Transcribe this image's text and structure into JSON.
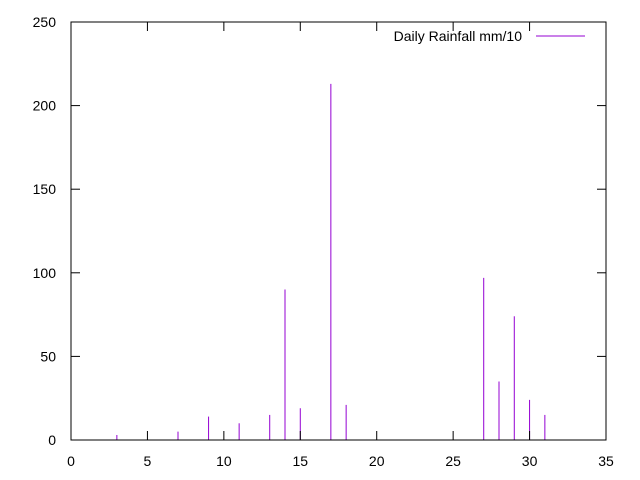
{
  "chart_data": {
    "type": "bar",
    "style": "impulses",
    "legend_position": "top-right",
    "grid": false,
    "xlim": [
      0,
      35
    ],
    "ylim": [
      0,
      250
    ],
    "x_ticks": [
      0,
      5,
      10,
      15,
      20,
      25,
      30,
      35
    ],
    "y_ticks": [
      0,
      50,
      100,
      150,
      200,
      250
    ],
    "series": [
      {
        "name": "Daily Rainfall mm/10",
        "color": "#9400d3",
        "x": [
          1,
          2,
          3,
          4,
          5,
          6,
          7,
          8,
          9,
          10,
          11,
          12,
          13,
          14,
          15,
          16,
          17,
          18,
          19,
          20,
          21,
          22,
          23,
          24,
          25,
          26,
          27,
          28,
          29,
          30,
          31
        ],
        "y": [
          0,
          0,
          3,
          0,
          0,
          0,
          5,
          0,
          14,
          0,
          10,
          0,
          15,
          90,
          19,
          0,
          213,
          21,
          0,
          0,
          0,
          0,
          0,
          0,
          0,
          0,
          97,
          35,
          74,
          24,
          15
        ]
      }
    ]
  }
}
